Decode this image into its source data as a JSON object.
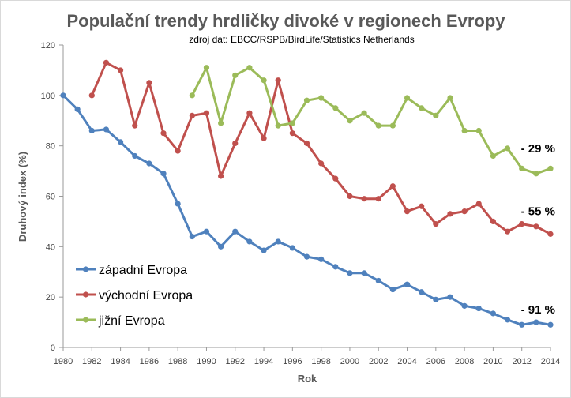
{
  "chart_data": {
    "type": "line",
    "title": "Populační trendy hrdličky divoké v regionech Evropy",
    "subtitle": "zdroj dat: EBCC/RSPB/BirdLife/Statistics  Netherlands",
    "xlabel": "Rok",
    "ylabel": "Druhový index (%)",
    "xlim": [
      1980,
      2014
    ],
    "ylim": [
      0,
      120
    ],
    "x_ticks": [
      "1980",
      "1982",
      "1984",
      "1986",
      "1988",
      "1990",
      "1992",
      "1994",
      "1996",
      "1998",
      "2000",
      "2002",
      "2004",
      "2006",
      "2008",
      "2010",
      "2012",
      "2014"
    ],
    "y_ticks": [
      "0",
      "20",
      "40",
      "60",
      "80",
      "100",
      "120"
    ],
    "grid": false,
    "legend_position": "bottom-left",
    "series": [
      {
        "name": "západní Evropa",
        "color": "#4f81bd",
        "x": [
          1980,
          1981,
          1982,
          1983,
          1984,
          1985,
          1986,
          1987,
          1988,
          1989,
          1990,
          1991,
          1992,
          1993,
          1994,
          1995,
          1996,
          1997,
          1998,
          1999,
          2000,
          2001,
          2002,
          2003,
          2004,
          2005,
          2006,
          2007,
          2008,
          2009,
          2010,
          2011,
          2012,
          2013,
          2014
        ],
        "values": [
          100,
          94.5,
          86,
          86.5,
          81.5,
          76,
          73,
          69,
          57,
          44,
          46,
          40,
          46,
          42,
          38.5,
          42,
          39.5,
          36,
          35,
          32,
          29.5,
          29.5,
          26.5,
          23,
          25,
          22,
          19,
          20,
          16.5,
          15.5,
          13.5,
          11,
          9,
          10,
          9
        ]
      },
      {
        "name": "východní Evropa",
        "color": "#c0504d",
        "x": [
          1982,
          1983,
          1984,
          1985,
          1986,
          1987,
          1988,
          1989,
          1990,
          1991,
          1992,
          1993,
          1994,
          1995,
          1996,
          1997,
          1998,
          1999,
          2000,
          2001,
          2002,
          2003,
          2004,
          2005,
          2006,
          2007,
          2008,
          2009,
          2010,
          2011,
          2012,
          2013,
          2014
        ],
        "values": [
          100,
          113,
          110,
          88,
          105,
          85,
          78,
          92,
          93,
          68,
          81,
          93,
          83,
          106,
          85,
          81,
          73,
          67,
          60,
          59,
          59,
          64,
          54,
          56,
          49,
          53,
          54,
          57,
          50,
          46,
          49,
          48,
          45
        ]
      },
      {
        "name": "jižní Evropa",
        "color": "#9bbb59",
        "x": [
          1989,
          1990,
          1991,
          1992,
          1993,
          1994,
          1995,
          1996,
          1997,
          1998,
          1999,
          2000,
          2001,
          2002,
          2003,
          2004,
          2005,
          2006,
          2007,
          2008,
          2009,
          2010,
          2011,
          2012,
          2013,
          2014
        ],
        "values": [
          100,
          111,
          89,
          108,
          111,
          106,
          88,
          89,
          98,
          99,
          95,
          90,
          93,
          88,
          88,
          99,
          95,
          92,
          99,
          86,
          86,
          76,
          79,
          71,
          69,
          71
        ]
      }
    ],
    "annotations": [
      {
        "text": "- 29 %",
        "series": "jižní Evropa",
        "x": 2014,
        "y": 79
      },
      {
        "text": "- 55 %",
        "series": "východní Evropa",
        "x": 2014,
        "y": 54
      },
      {
        "text": "- 91 %",
        "series": "západní Evropa",
        "x": 2014,
        "y": 15
      }
    ]
  }
}
